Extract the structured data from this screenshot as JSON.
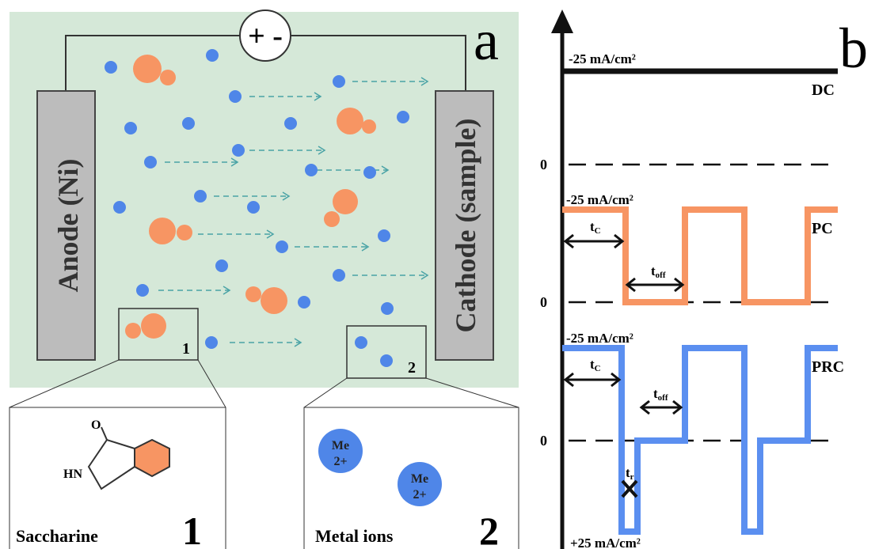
{
  "panel_a": {
    "label": "a",
    "power": "+ -",
    "anode": "Anode (Ni)",
    "cathode": "Cathode (sample)",
    "box_1": "1",
    "box_2": "2"
  },
  "insets": [
    {
      "name": "Saccharine",
      "number": "1",
      "atoms": [
        "O",
        "HN"
      ]
    },
    {
      "name": "Metal ions",
      "number": "2",
      "ions": [
        [
          "Me",
          "2+"
        ],
        [
          "Me",
          "2+"
        ]
      ]
    }
  ],
  "panel_b": {
    "label": "b",
    "dc": {
      "name": "DC",
      "current": "-25 mA/cm²"
    },
    "pc": {
      "name": "PC",
      "current": "-25 mA/cm²",
      "zero": "0",
      "t_on": [
        "t",
        "C"
      ],
      "t_off": [
        "t",
        "off"
      ]
    },
    "prc": {
      "name": "PRC",
      "current": "-25 mA/cm²",
      "reverse_current": "+25 mA/cm²",
      "zero": "0",
      "t_on": [
        "t",
        "C"
      ],
      "t_off": [
        "t",
        "off"
      ],
      "t_rev": [
        "t",
        "r"
      ]
    },
    "dc_zero": "0"
  }
}
